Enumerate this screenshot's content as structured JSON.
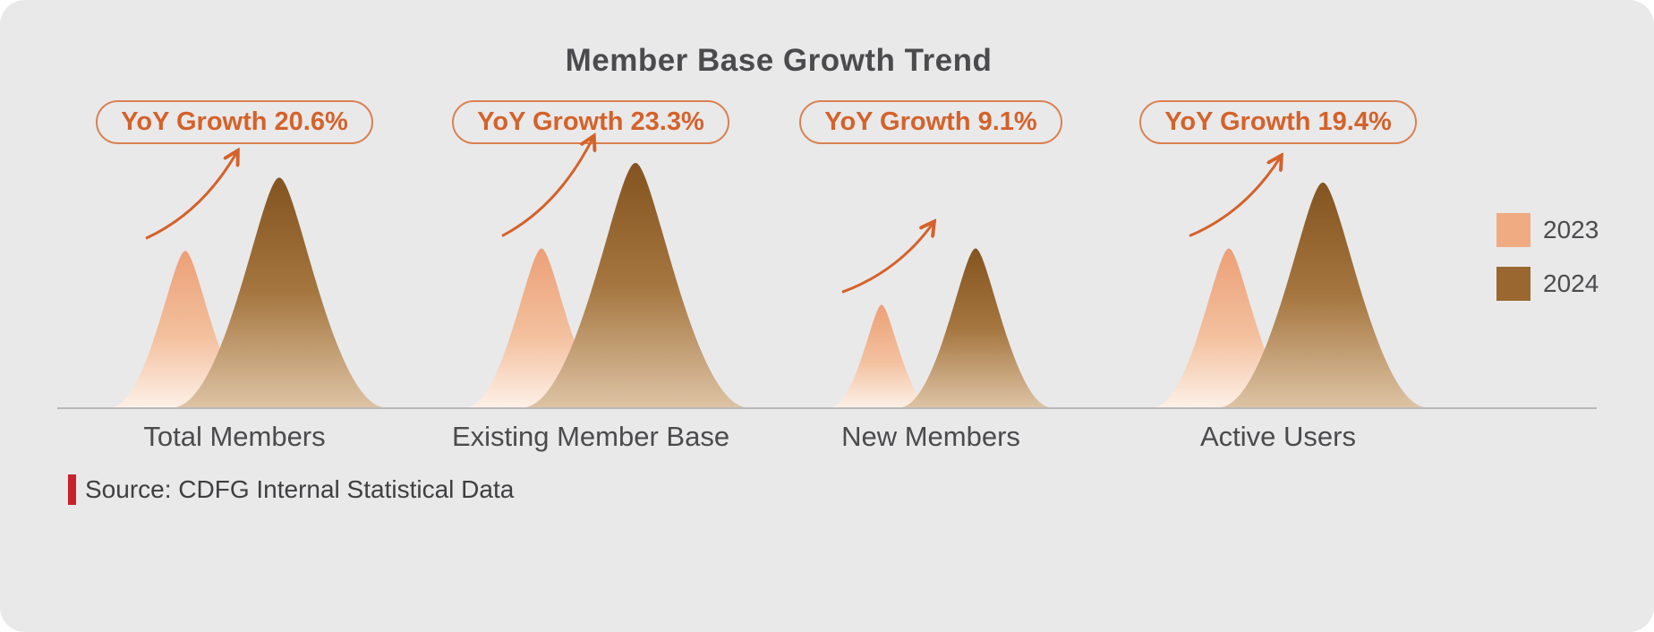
{
  "title": "Member Base Growth Trend",
  "chart_data": {
    "type": "area",
    "title": "Member Base Growth Trend",
    "categories": [
      "Total Members",
      "Existing Member Base",
      "New Members",
      "Active Users"
    ],
    "series": [
      {
        "name": "2023",
        "values": [
          64,
          65,
          42,
          65
        ]
      },
      {
        "name": "2024",
        "values": [
          94,
          100,
          65,
          92
        ]
      }
    ],
    "values_unit": "relative peak height, % of tallest peak",
    "yoy_growth_percent": [
      20.6,
      23.3,
      9.1,
      19.4
    ],
    "badge_labels": [
      "YoY Growth 20.6%",
      "YoY Growth 23.3%",
      "YoY Growth 9.1%",
      "YoY Growth 19.4%"
    ],
    "legend_position": "right",
    "grid": false,
    "source": "Source: CDFG Internal Statistical Data"
  },
  "legend": {
    "items": [
      {
        "label": "2023",
        "color": "#f0ab83"
      },
      {
        "label": "2024",
        "color": "#99672f"
      }
    ]
  },
  "source_note": {
    "text": "Source: CDFG Internal Statistical Data"
  },
  "colors": {
    "panel_bg": "#e9e9ea",
    "accent_orange": "#d4622a",
    "badge_border": "#da8151",
    "series_2023_top": "#eca077",
    "series_2023_mid": "#f3c09e",
    "series_2023_bottom": "#fdf0e7",
    "series_2024_top": "#845420",
    "series_2024_mid": "#a5763f",
    "series_2024_bottom": "#ddc3a4",
    "text_dark": "#4b4b4d",
    "baseline": "#b9b9bb",
    "source_red": "#c9202e"
  }
}
